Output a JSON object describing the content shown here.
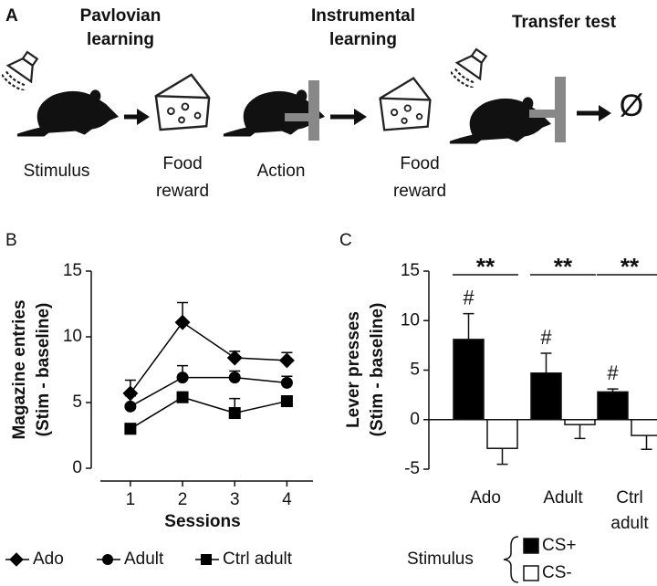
{
  "panel_a": {
    "label": "A",
    "stages": [
      {
        "title": [
          "Pavlovian",
          "learning"
        ]
      },
      {
        "title": [
          "Instrumental",
          "learning"
        ]
      },
      {
        "title": [
          "Transfer test"
        ]
      }
    ],
    "captions": [
      [
        "Stimulus"
      ],
      [
        "Food",
        "reward"
      ],
      [
        "Action"
      ],
      [
        "Food",
        "reward"
      ]
    ],
    "outcome": "Ø"
  },
  "chart_data": [
    {
      "type": "line",
      "panel_label": "B",
      "ylabel": [
        "Magazine entries",
        "(Stim - baseline)"
      ],
      "xlabel": "Sessions",
      "x": [
        1,
        2,
        3,
        4
      ],
      "xticks": [
        1,
        2,
        3,
        4
      ],
      "xlim": [
        0.25,
        4.5
      ],
      "ylim": [
        0,
        15
      ],
      "yticks": [
        0,
        5,
        10,
        15
      ],
      "series": [
        {
          "name": "Ado",
          "marker": "diamond",
          "color": "#000000",
          "values": [
            5.7,
            11.1,
            8.4,
            8.2
          ],
          "errors": [
            1.0,
            1.5,
            0.5,
            0.6
          ]
        },
        {
          "name": "Adult",
          "marker": "circle",
          "color": "#000000",
          "values": [
            4.7,
            6.9,
            6.9,
            6.5
          ],
          "errors": [
            0.8,
            0.9,
            0.5,
            0.5
          ]
        },
        {
          "name": "Ctrl adult",
          "marker": "square",
          "color": "#000000",
          "values": [
            3.0,
            5.4,
            4.2,
            5.1
          ],
          "errors": [
            0.4,
            0.4,
            1.1,
            0.4
          ]
        }
      ]
    },
    {
      "type": "bar",
      "panel_label": "C",
      "ylabel": [
        "Lever presses",
        "(Stim - baseline)"
      ],
      "categories": [
        "Ado",
        "Adult",
        "Ctrl adult"
      ],
      "ylim": [
        -5,
        15
      ],
      "yticks": [
        -5,
        0,
        5,
        10,
        15
      ],
      "legend_title": "Stimulus",
      "series": [
        {
          "name": "CS+",
          "color": "#000000",
          "values": [
            8.1,
            4.7,
            2.8
          ],
          "errors": [
            2.6,
            2.0,
            0.3
          ]
        },
        {
          "name": "CS-",
          "color": "#ffffff",
          "values": [
            -2.9,
            -0.5,
            -1.6
          ],
          "errors": [
            1.6,
            1.4,
            1.4
          ]
        }
      ],
      "significance": [
        "**",
        "**",
        "**"
      ],
      "markers": [
        "#",
        "#",
        "#"
      ]
    }
  ]
}
